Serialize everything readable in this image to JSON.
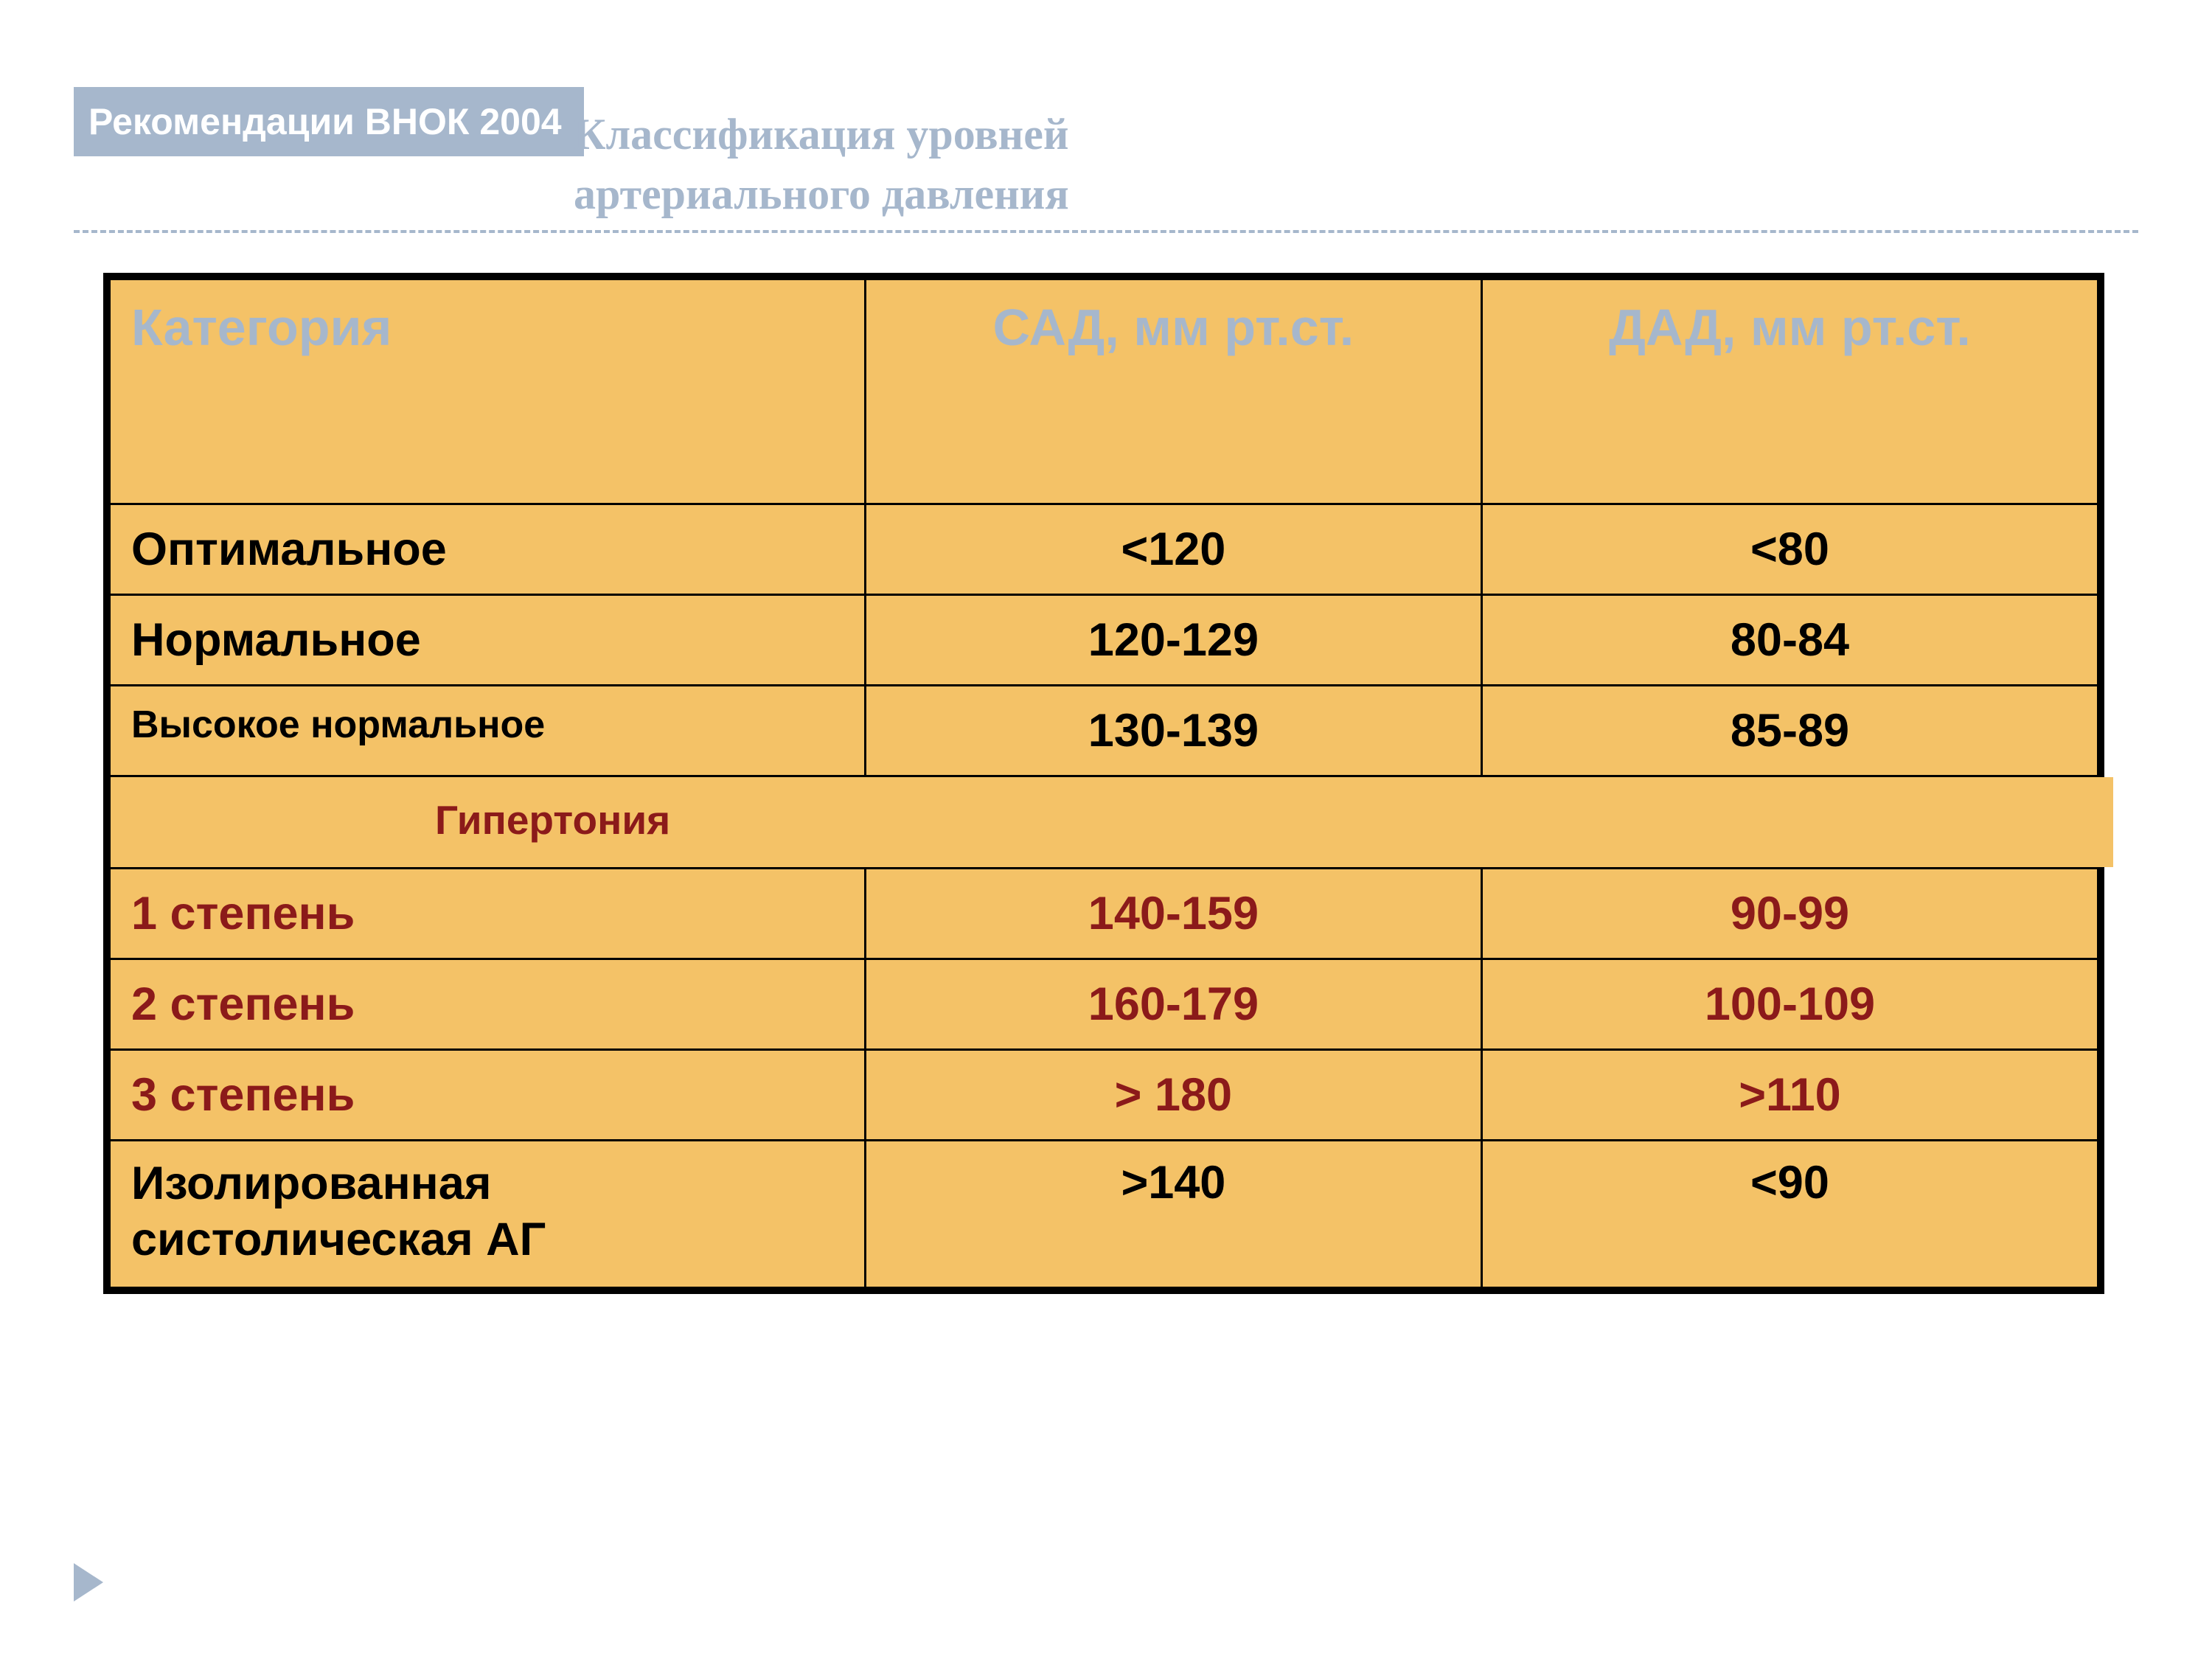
{
  "header": {
    "tag": "Рекомендации ВНОК 2004",
    "title_line1": "Классификация уровней",
    "title_line2": "артериального давления"
  },
  "table": {
    "type": "table",
    "background_color": "#f4c267",
    "border_color": "#000000",
    "header_text_color": "#a6b7cc",
    "body_text_color": "#000000",
    "hyper_text_color": "#8b1a1a",
    "columns": {
      "category": "Категория",
      "sad": "САД, мм рт.ст.",
      "dad": "ДАД, мм рт.ст."
    },
    "normal_rows": [
      {
        "label": "Оптимальное",
        "sad": "<120",
        "dad": "<80",
        "label_fontsize": 63
      },
      {
        "label": "Нормальное",
        "sad": "120-129",
        "dad": "80-84",
        "label_fontsize": 63
      },
      {
        "label": "Высокое нормальное",
        "sad": "130-139",
        "dad": "85-89",
        "label_fontsize": 52
      }
    ],
    "section_label": "Гипертония",
    "hyper_rows": [
      {
        "label": "1 степень",
        "sad": "140-159",
        "dad": "90-99"
      },
      {
        "label": "2 степень",
        "sad": "160-179",
        "dad": "100-109"
      },
      {
        "label": "3 степень",
        "sad": "> 180",
        "dad": ">110"
      }
    ],
    "isolated_row": {
      "label_line1": "Изолированная",
      "label_line2": "систолическая АГ",
      "sad": ">140",
      "dad": "<90"
    }
  },
  "style": {
    "page_bg": "#ffffff",
    "accent": "#a6b7cc",
    "tag_text": "#ffffff",
    "title_font": "Georgia",
    "body_font": "Arial",
    "header_fontsize": 70,
    "body_fontsize": 63,
    "section_fontsize": 55
  }
}
